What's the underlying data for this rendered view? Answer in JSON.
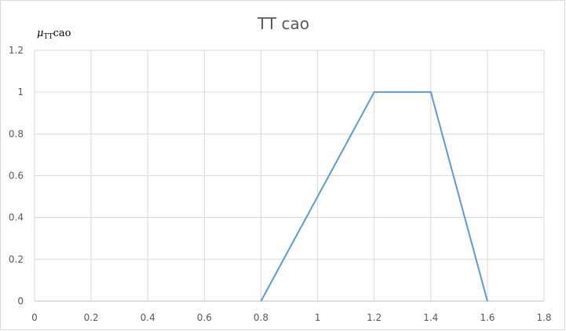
{
  "chart_data": {
    "type": "line",
    "title": "TT cao",
    "ylabel": {
      "symbol": "μ",
      "subscript": "TT",
      "suffix": "cao"
    },
    "xlabel": "",
    "x_ticks": [
      "0",
      "0.2",
      "0.4",
      "0.6",
      "0.8",
      "1",
      "1.2",
      "1.4",
      "1.6",
      "1.8"
    ],
    "y_ticks": [
      "0",
      "0.2",
      "0.4",
      "0.6",
      "0.8",
      "1",
      "1.2"
    ],
    "xlim": [
      0,
      1.8
    ],
    "ylim": [
      0,
      1.2
    ],
    "grid": true,
    "series": [
      {
        "color": "#5b9bd5",
        "points": [
          {
            "x": 0.8,
            "y": 0
          },
          {
            "x": 1.2,
            "y": 1
          },
          {
            "x": 1.4,
            "y": 1
          },
          {
            "x": 1.6,
            "y": 0
          }
        ]
      }
    ],
    "colors": {
      "grid": "#d9d9d9",
      "axis": "#bfbfbf",
      "text": "#595959"
    }
  }
}
